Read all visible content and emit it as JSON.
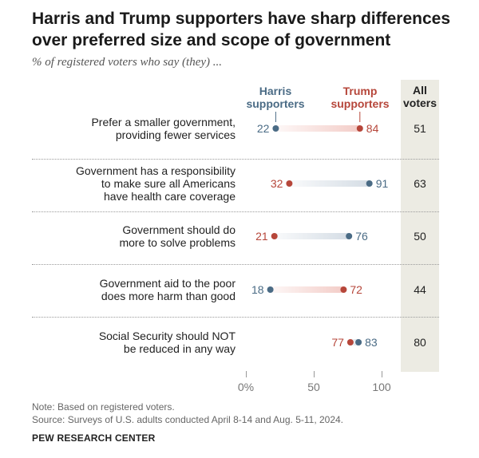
{
  "title": "Harris and Trump supporters have sharp differences over preferred size and scope of government",
  "subtitle": "% of registered voters who say (they) ...",
  "columns": {
    "harris": "Harris supporters",
    "trump": "Trump supporters",
    "all": "All voters"
  },
  "colors": {
    "harris": "#4a6b85",
    "trump": "#b6463a",
    "harris_bar": "#d5dde5",
    "trump_bar": "#f3cdc8",
    "all_background": "#ecebe3"
  },
  "chart_data": {
    "type": "dot",
    "xlim": [
      0,
      100
    ],
    "x_ticks": [
      "0%",
      "50",
      "100"
    ],
    "series": [
      {
        "name": "Harris supporters",
        "values": [
          22,
          91,
          76,
          18,
          83
        ]
      },
      {
        "name": "Trump supporters",
        "values": [
          84,
          32,
          21,
          72,
          77
        ]
      },
      {
        "name": "All voters",
        "values": [
          51,
          63,
          50,
          44,
          80
        ]
      }
    ],
    "categories": [
      "Prefer a smaller government, providing fewer services",
      "Government has a responsibility to make sure all Americans have health care coverage",
      "Government should do more to solve problems",
      "Government aid to the poor does more harm than good",
      "Social Security should NOT be reduced in any way"
    ],
    "rows": [
      {
        "label_lines": [
          "Prefer a smaller government,",
          "providing fewer services"
        ],
        "harris": 22,
        "trump": 84,
        "all": 51,
        "higher": "trump"
      },
      {
        "label_lines": [
          "Government has a responsibility",
          "to make sure all Americans",
          "have health care coverage"
        ],
        "harris": 91,
        "trump": 32,
        "all": 63,
        "higher": "harris"
      },
      {
        "label_lines": [
          "Government should do",
          "more to solve problems"
        ],
        "harris": 76,
        "trump": 21,
        "all": 50,
        "higher": "harris"
      },
      {
        "label_lines": [
          "Government aid to the poor",
          "does more harm than good"
        ],
        "harris": 18,
        "trump": 72,
        "all": 44,
        "higher": "trump"
      },
      {
        "label_lines": [
          "Social Security should NOT",
          "be reduced in any way"
        ],
        "harris": 83,
        "trump": 77,
        "all": 80,
        "higher": "harris"
      }
    ]
  },
  "notes": {
    "note": "Note: Based on registered voters.",
    "source": "Source: Surveys of U.S. adults conducted April 8-14 and Aug. 5-11, 2024.",
    "org": "PEW RESEARCH CENTER"
  }
}
